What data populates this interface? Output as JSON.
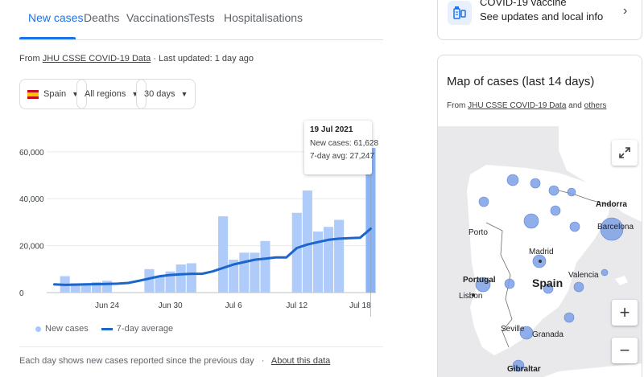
{
  "tabs": [
    {
      "label": "New cases",
      "active": true
    },
    {
      "label": "Deaths",
      "active": false
    },
    {
      "label": "Vaccinations",
      "active": false
    },
    {
      "label": "Tests",
      "active": false
    },
    {
      "label": "Hospitalisations",
      "active": false
    }
  ],
  "source": {
    "prefix": "From",
    "link": "JHU CSSE COVID-19 Data",
    "updated": "· Last updated: 1 day ago"
  },
  "filters": {
    "country": "Spain",
    "region": "All regions",
    "period": "30 days"
  },
  "tooltip": {
    "date": "19 Jul 2021",
    "new_cases": "New cases: 61,628",
    "avg": "7-day avg: 27,247"
  },
  "legend": {
    "cases": "New cases",
    "avg": "7-day average"
  },
  "footer": {
    "text": "Each day shows new cases reported since the previous day",
    "sep": "·",
    "link": "About this data"
  },
  "vaccine_card": {
    "title": "COVID-19 vaccine",
    "subtitle": "See updates and local info"
  },
  "map_card": {
    "title": "Map of cases (last 14 days)",
    "source_prefix": "From",
    "source_link": "JHU CSSE COVID-19 Data",
    "and": "and",
    "others": "others",
    "cities": {
      "andorra": "Andorra",
      "barcelona": "Barcelona",
      "porto": "Porto",
      "madrid": "Madrid",
      "portugal": "Portugal",
      "spain": "Spain",
      "valencia": "Valencia",
      "lisbon": "Lisbon",
      "seville": "Seville",
      "granada": "Granada",
      "gibraltar": "Gibraltar"
    }
  },
  "colors": {
    "bar": "#aecbfa",
    "bar_highlight": "#8ab4f8",
    "line": "#1a66cc",
    "bubble": "#7ba0e6",
    "accent": "#1a73e8"
  },
  "chart_data": {
    "type": "bar",
    "x": [
      "Jun 19",
      "Jun 20",
      "Jun 21",
      "Jun 22",
      "Jun 23",
      "Jun 24",
      "Jun 25",
      "Jun 26",
      "Jun 27",
      "Jun 28",
      "Jun 29",
      "Jun 30",
      "Jul 1",
      "Jul 2",
      "Jul 3",
      "Jul 4",
      "Jul 5",
      "Jul 6",
      "Jul 7",
      "Jul 8",
      "Jul 9",
      "Jul 10",
      "Jul 11",
      "Jul 12",
      "Jul 13",
      "Jul 14",
      "Jul 15",
      "Jul 16",
      "Jul 17",
      "Jul 18",
      "Jul 19"
    ],
    "series": [
      {
        "name": "New cases",
        "type": "bar",
        "values": [
          null,
          7000,
          4000,
          4000,
          4500,
          5000,
          null,
          null,
          null,
          10000,
          7000,
          9000,
          12000,
          12500,
          null,
          null,
          32500,
          14000,
          17000,
          17000,
          22000,
          null,
          null,
          34000,
          43500,
          26000,
          28000,
          31000,
          null,
          null,
          61628
        ]
      },
      {
        "name": "7-day average",
        "type": "line",
        "values": [
          3500,
          3300,
          3400,
          3500,
          3600,
          3700,
          3800,
          4100,
          5000,
          6000,
          7000,
          7500,
          7800,
          8000,
          8000,
          9000,
          10500,
          12000,
          13000,
          14000,
          14500,
          15000,
          15000,
          19000,
          20500,
          21500,
          22500,
          23000,
          23200,
          23400,
          27247
        ]
      }
    ],
    "x_tick_labels": [
      "Jun 24",
      "Jun 30",
      "Jul 6",
      "Jul 12",
      "Jul 18"
    ],
    "y_ticks": [
      0,
      20000,
      40000,
      60000
    ],
    "y_tick_labels": [
      "0",
      "20,000",
      "40,000",
      "60,000"
    ],
    "ylim": [
      0,
      62000
    ],
    "highlighted": "Jul 19",
    "grid": true,
    "legend": "bottom-left"
  }
}
